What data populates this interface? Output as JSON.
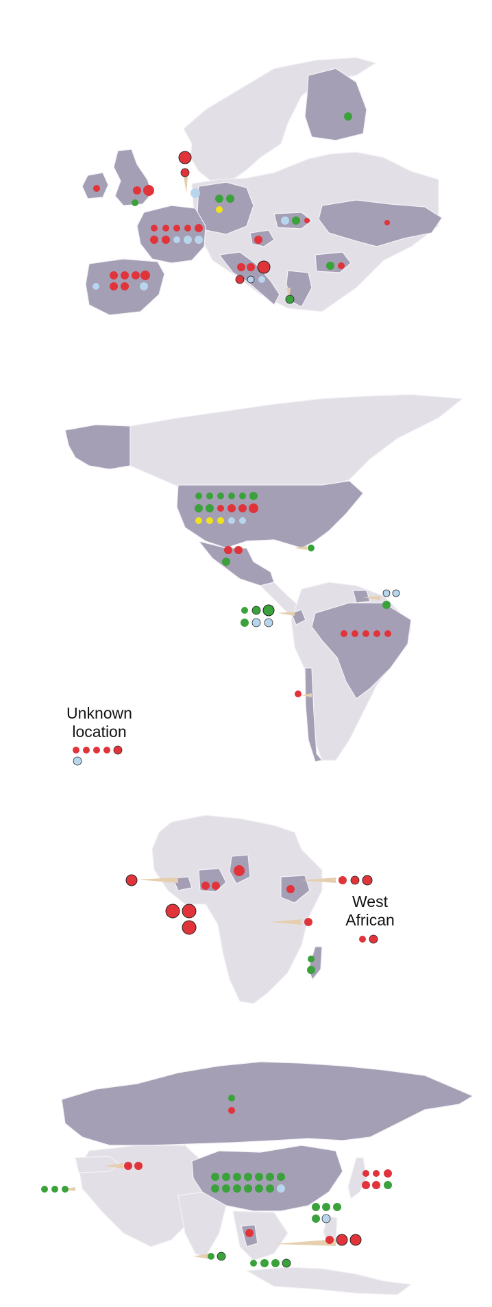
{
  "labels": {
    "unknown_location": "Unknown\nlocation",
    "west_african": "West\nAfrican"
  },
  "colors": {
    "background": "#ffffff",
    "land_highlight": "#a59fb5",
    "land_base": "#e2dfe7",
    "border": "#f4f2f6",
    "callout": "#e6cfae",
    "red": "#e0343a",
    "green": "#3aa13b",
    "light_blue": "#b7d6ee",
    "yellow": "#f2e21c",
    "outline": "#222222"
  },
  "markers": {
    "europe": [
      {
        "color": "red",
        "style": "full",
        "count": 2,
        "region": "Norway"
      },
      {
        "color": "green",
        "style": "hatched",
        "count": 1,
        "region": "Finland"
      },
      {
        "color": "red",
        "style": "wedge",
        "count": 1,
        "region": "Ireland"
      },
      {
        "color": "red",
        "style": "full",
        "count": 2,
        "region": "UK"
      },
      {
        "color": "green",
        "style": "wedge",
        "count": 1,
        "region": "UK"
      },
      {
        "color": "light_blue",
        "style": "full",
        "count": 1,
        "region": "Netherlands"
      },
      {
        "color": "green",
        "style": "wedge",
        "count": 2,
        "region": "Germany"
      },
      {
        "color": "yellow",
        "style": "wedge",
        "count": 1,
        "region": "Germany"
      },
      {
        "color": "red",
        "style": "wedge",
        "count": 5,
        "region": "France"
      },
      {
        "color": "light_blue",
        "style": "full",
        "count": 3,
        "region": "France"
      },
      {
        "color": "red",
        "style": "full",
        "count": 4,
        "region": "Spain"
      },
      {
        "color": "light_blue",
        "style": "full",
        "count": 2,
        "region": "Spain"
      },
      {
        "color": "light_blue",
        "style": "full",
        "count": 1,
        "region": "Hungary"
      },
      {
        "color": "green",
        "style": "wedge",
        "count": 1,
        "region": "Hungary"
      },
      {
        "color": "red",
        "style": "hatched",
        "count": 2,
        "region": "Croatia"
      },
      {
        "color": "red",
        "style": "full",
        "count": 4,
        "region": "Italy"
      },
      {
        "color": "light_blue",
        "style": "wedge",
        "count": 2,
        "region": "Italy"
      },
      {
        "color": "green",
        "style": "full",
        "count": 2,
        "region": "Greece/Bulgaria"
      },
      {
        "color": "red",
        "style": "wedge",
        "count": 2,
        "region": "Ukraine/Bulgaria"
      }
    ],
    "americas": [
      {
        "color": "green",
        "style": "wedge",
        "count": 7,
        "region": "USA"
      },
      {
        "color": "red",
        "style": "full",
        "count": 4,
        "region": "USA"
      },
      {
        "color": "yellow",
        "style": "wedge",
        "count": 4,
        "region": "USA"
      },
      {
        "color": "light_blue",
        "style": "wedge",
        "count": 2,
        "region": "USA"
      },
      {
        "color": "red",
        "style": "full",
        "count": 2,
        "region": "Mexico"
      },
      {
        "color": "green",
        "style": "full",
        "count": 1,
        "region": "Mexico"
      },
      {
        "color": "green",
        "style": "wedge",
        "count": 1,
        "region": "Caribbean"
      },
      {
        "color": "green",
        "style": "full",
        "count": 4,
        "region": "Ecuador"
      },
      {
        "color": "light_blue",
        "style": "full",
        "count": 3,
        "region": "Ecuador"
      },
      {
        "color": "light_blue",
        "style": "wedge",
        "count": 2,
        "region": "Guiana"
      },
      {
        "color": "green",
        "style": "full",
        "count": 1,
        "region": "Guiana"
      },
      {
        "color": "red",
        "style": "wedge",
        "count": 5,
        "region": "Brazil"
      },
      {
        "color": "red",
        "style": "wedge",
        "count": 1,
        "region": "Chile"
      },
      {
        "color": "red",
        "style": "wedge",
        "count": 5,
        "region": "Unknown"
      },
      {
        "color": "light_blue",
        "style": "hatched",
        "count": 1,
        "region": "Unknown"
      }
    ],
    "africa": [
      {
        "color": "red",
        "style": "sectored",
        "count": 5,
        "region": "West Africa"
      },
      {
        "color": "red",
        "style": "full",
        "count": 2,
        "region": "Nigeria"
      },
      {
        "color": "red",
        "style": "hatched",
        "count": 1,
        "region": "Chad"
      },
      {
        "color": "red",
        "style": "full",
        "count": 3,
        "region": "Ethiopia"
      },
      {
        "color": "red",
        "style": "full",
        "count": 1,
        "region": "Kenya"
      },
      {
        "color": "green",
        "style": "full",
        "count": 2,
        "region": "Madagascar"
      },
      {
        "color": "red",
        "style": "wedge",
        "count": 2,
        "region": "West African"
      }
    ],
    "asia": [
      {
        "color": "green",
        "style": "full",
        "count": 1,
        "region": "Russia"
      },
      {
        "color": "red",
        "style": "full",
        "count": 1,
        "region": "Russia"
      },
      {
        "color": "red",
        "style": "full",
        "count": 2,
        "region": "Turkey"
      },
      {
        "color": "green",
        "style": "wedge",
        "count": 3,
        "region": "Middle East"
      },
      {
        "color": "green",
        "style": "full",
        "count": 13,
        "region": "China"
      },
      {
        "color": "light_blue",
        "style": "full",
        "count": 1,
        "region": "China"
      },
      {
        "color": "red",
        "style": "wedge",
        "count": 3,
        "region": "Japan"
      },
      {
        "color": "red",
        "style": "full",
        "count": 3,
        "region": "Japan"
      },
      {
        "color": "green",
        "style": "full",
        "count": 6,
        "region": "Taiwan/Philippines"
      },
      {
        "color": "red",
        "style": "full",
        "count": 1,
        "region": "Thailand"
      },
      {
        "color": "green",
        "style": "wedge",
        "count": 2,
        "region": "India/Sri Lanka"
      },
      {
        "color": "green",
        "style": "full",
        "count": 4,
        "region": "Indonesia"
      },
      {
        "color": "red",
        "style": "sectored",
        "count": 3,
        "region": "Philippines"
      }
    ]
  }
}
